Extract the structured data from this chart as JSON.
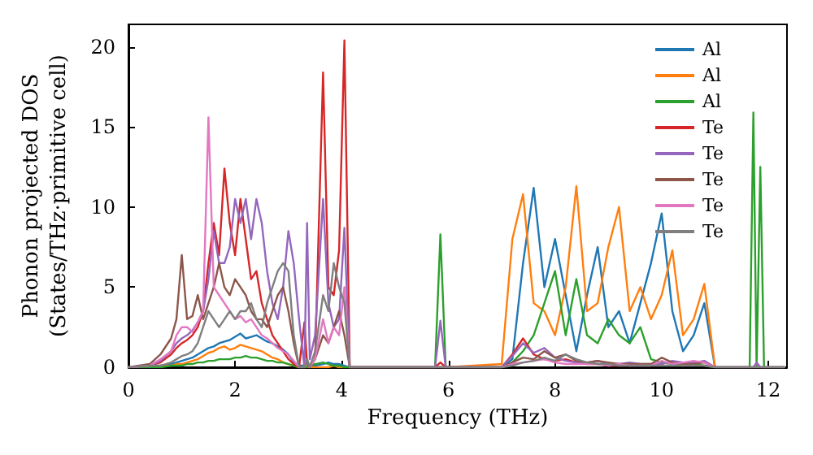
{
  "chart_data": {
    "type": "line",
    "xlabel": "Frequency (THz)",
    "ylabel": "Phonon projected DOS\n(States/THz·primitive cell)",
    "x": [
      0,
      0.4,
      0.6,
      0.8,
      0.9,
      1.0,
      1.1,
      1.2,
      1.3,
      1.4,
      1.5,
      1.6,
      1.7,
      1.8,
      1.9,
      2.0,
      2.1,
      2.2,
      2.3,
      2.4,
      2.5,
      2.6,
      2.7,
      2.8,
      2.9,
      3.0,
      3.1,
      3.2,
      3.3,
      3.35,
      3.4,
      3.5,
      3.65,
      3.75,
      3.85,
      3.95,
      4.05,
      4.15,
      4.3,
      5.75,
      5.85,
      5.95,
      7.0,
      7.2,
      7.4,
      7.6,
      7.8,
      8.0,
      8.2,
      8.4,
      8.6,
      8.8,
      9.0,
      9.2,
      9.4,
      9.6,
      9.8,
      10.0,
      10.2,
      10.4,
      10.6,
      10.8,
      11.0,
      11.65,
      11.72,
      11.78,
      11.85,
      11.92,
      12.3
    ],
    "xlim": [
      0,
      12.35
    ],
    "ylim": [
      0,
      21.4
    ],
    "xticks": [
      0,
      2,
      4,
      6,
      8,
      10,
      12
    ],
    "yticks": [
      0,
      5,
      10,
      15,
      20
    ],
    "legend": "top right",
    "marker": "none",
    "line_style": "solid",
    "series": [
      {
        "name": "Al",
        "color": "#1f77b4",
        "values": [
          null,
          null,
          0.1,
          0.2,
          0.3,
          0.4,
          0.5,
          0.6,
          0.8,
          1.0,
          1.2,
          1.3,
          1.5,
          1.6,
          1.7,
          1.9,
          2.1,
          1.8,
          1.9,
          2.0,
          1.8,
          1.6,
          1.5,
          1.3,
          1.1,
          0.8,
          0.3,
          0.1,
          0.1,
          0.2,
          0.1,
          0.1,
          0.2,
          0.3,
          0.2,
          0.2,
          0.1,
          0,
          0,
          0,
          0,
          0,
          0,
          0.5,
          6.5,
          11.2,
          5,
          8,
          4.5,
          1,
          4.5,
          7.5,
          2.5,
          3.5,
          1.5,
          4,
          6.5,
          9.6,
          3.5,
          1,
          2,
          4,
          0,
          null,
          null,
          null,
          null,
          null,
          null
        ]
      },
      {
        "name": "Al",
        "color": "#ff7f0e",
        "values": [
          null,
          null,
          0.1,
          0.1,
          0.2,
          0.2,
          0.3,
          0.4,
          0.5,
          0.7,
          0.9,
          1.0,
          1.2,
          1.3,
          1.1,
          1.2,
          1.4,
          1.3,
          1.2,
          1.1,
          1.0,
          0.8,
          0.6,
          0.5,
          0.3,
          0.2,
          0.1,
          0,
          0,
          0,
          0,
          0,
          0,
          0,
          0.1,
          0,
          0,
          0,
          0,
          0,
          0,
          0,
          0.2,
          8,
          10.8,
          4,
          3.5,
          2,
          5,
          11.3,
          3.5,
          4,
          7.5,
          10,
          3.5,
          5,
          3,
          4.5,
          7.3,
          2,
          3,
          5.2,
          0,
          null,
          null,
          null,
          null,
          null,
          null
        ]
      },
      {
        "name": "Al",
        "color": "#2ca02c",
        "values": [
          0,
          0,
          0,
          0.1,
          0.1,
          0.1,
          0.2,
          0.2,
          0.3,
          0.3,
          0.4,
          0.4,
          0.5,
          0.5,
          0.5,
          0.6,
          0.6,
          0.7,
          0.6,
          0.6,
          0.5,
          0.4,
          0.4,
          0.3,
          0.3,
          0.2,
          0.1,
          0,
          0,
          0,
          0.1,
          0.2,
          0.3,
          0.2,
          0.1,
          0.1,
          0,
          0,
          0,
          0,
          8.3,
          0,
          0,
          0.3,
          1,
          2,
          4,
          6,
          2,
          5.5,
          2,
          1.5,
          3,
          2,
          1.5,
          2.5,
          0.5,
          0.3,
          0.2,
          0.1,
          0.2,
          0.1,
          0,
          0,
          15.9,
          0,
          12.5,
          0,
          0
        ]
      },
      {
        "name": "Te",
        "color": "#d62728",
        "values": [
          0,
          0.1,
          0.3,
          0.8,
          1.2,
          1.5,
          1.7,
          2.0,
          2.5,
          3.5,
          6.5,
          9.0,
          7.0,
          12.4,
          9.0,
          7.0,
          10.5,
          8.0,
          5.5,
          6.0,
          4.0,
          3.0,
          2.0,
          1.5,
          1.0,
          0.5,
          0.2,
          0,
          2.8,
          0.2,
          0,
          0.5,
          18.4,
          5,
          4.5,
          7.3,
          20.4,
          0,
          0,
          0,
          0.3,
          0,
          0,
          0.8,
          1.8,
          0.8,
          0.5,
          0.4,
          0.5,
          0.3,
          0.2,
          0.2,
          0.1,
          0.1,
          0.1,
          null,
          null,
          null,
          null,
          null,
          null,
          null,
          null,
          null,
          null,
          null,
          null,
          null,
          null
        ]
      },
      {
        "name": "Te",
        "color": "#9467bd",
        "values": [
          0,
          0.1,
          0.4,
          1.0,
          1.5,
          1.8,
          2.0,
          2.3,
          2.8,
          3.5,
          5.5,
          8.5,
          6.5,
          6.5,
          7.5,
          10.5,
          9.0,
          10.5,
          8.0,
          10.5,
          9.0,
          6.0,
          4.0,
          3.0,
          5.0,
          8.5,
          6.5,
          3.0,
          0,
          9.0,
          0.5,
          2.0,
          10.5,
          4,
          2.5,
          3,
          8.7,
          0,
          0,
          0,
          2.9,
          0,
          0,
          0.7,
          1.5,
          0.9,
          1.2,
          0.6,
          0.4,
          0.3,
          0.3,
          0.4,
          0.2,
          0.2,
          0.3,
          0.2,
          0.2,
          0.2,
          0.4,
          0.3,
          0.3,
          0.4,
          0,
          0,
          0,
          0.3,
          0,
          0,
          0
        ]
      },
      {
        "name": "Te",
        "color": "#8c564b",
        "values": [
          0,
          0.2,
          0.8,
          1.8,
          3.0,
          7.0,
          3.0,
          3.2,
          4.5,
          3.0,
          4.0,
          5.0,
          6.5,
          5.0,
          4.5,
          5.5,
          5.0,
          4.5,
          3.5,
          3.0,
          3.0,
          2.5,
          3.5,
          4.5,
          5.0,
          3.5,
          1.5,
          0,
          0,
          0.3,
          0,
          0.5,
          2.0,
          1.5,
          2.5,
          3.5,
          2.0,
          0,
          0,
          0,
          0,
          0,
          0,
          0.3,
          0.6,
          0.5,
          1.0,
          0.6,
          0.8,
          0.4,
          0.3,
          0.4,
          0.3,
          0.2,
          0.2,
          0.2,
          0.2,
          0.6,
          0.3,
          0.2,
          0.2,
          0.3,
          0,
          0,
          0,
          0,
          0,
          0,
          0
        ]
      },
      {
        "name": "Te",
        "color": "#e377c2",
        "values": [
          0,
          0.1,
          0.5,
          1.0,
          2.0,
          2.5,
          2.5,
          2.2,
          2.8,
          3.5,
          15.6,
          5.0,
          4.5,
          4.0,
          3.5,
          3.0,
          3.2,
          2.8,
          3.0,
          2.5,
          2.0,
          1.8,
          1.5,
          1.2,
          1.0,
          0.8,
          0.4,
          0,
          0,
          0.5,
          0,
          0.5,
          3,
          1.5,
          2.5,
          2,
          5,
          0,
          0,
          0,
          0,
          0,
          0,
          0.2,
          0.3,
          0.4,
          0.5,
          0.3,
          0.2,
          0.2,
          0.2,
          0.2,
          0.1,
          0.2,
          0.1,
          0.1,
          0.1,
          0.4,
          0.2,
          0.3,
          0.4,
          0.3,
          0,
          0,
          0,
          0,
          0,
          0,
          0
        ]
      },
      {
        "name": "Te",
        "color": "#7f7f7f",
        "values": [
          0,
          0.1,
          0.1,
          0.3,
          0.5,
          0.7,
          0.8,
          1.0,
          1.5,
          2.5,
          3.5,
          3.0,
          2.5,
          3.0,
          3.5,
          3.0,
          3.5,
          3.5,
          4.0,
          3.0,
          2.5,
          4.0,
          5.0,
          6.0,
          6.5,
          6.0,
          2.0,
          0,
          0,
          0.5,
          0,
          1.0,
          4.5,
          3.5,
          6.5,
          5.0,
          4.0,
          0,
          0,
          0,
          0,
          0,
          0,
          0.1,
          0.3,
          0.4,
          0.6,
          0.4,
          0.8,
          0.5,
          0.3,
          0.2,
          0.2,
          0.1,
          0.1,
          0.1,
          0.1,
          0.1,
          0.1,
          0.1,
          0.1,
          0.1,
          0,
          0,
          0,
          0,
          0,
          0,
          0
        ]
      }
    ]
  }
}
